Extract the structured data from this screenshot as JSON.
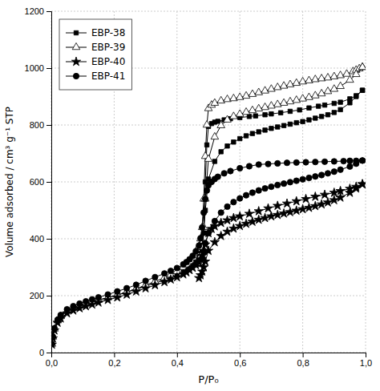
{
  "chart_data": {
    "type": "line",
    "xlabel": "P/P₀",
    "ylabel": "Volume adsorbed / cm³ g⁻¹ STP",
    "xlim": [
      0,
      1.0
    ],
    "ylim": [
      0,
      1200
    ],
    "xticks": [
      {
        "value": 0.0,
        "label": "0,0"
      },
      {
        "value": 0.2,
        "label": "0,2"
      },
      {
        "value": 0.4,
        "label": "0,4"
      },
      {
        "value": 0.6,
        "label": "0,6"
      },
      {
        "value": 0.8,
        "label": "0,8"
      },
      {
        "value": 1.0,
        "label": "1,0"
      }
    ],
    "yticks": [
      0,
      200,
      400,
      600,
      800,
      1000,
      1200
    ],
    "grid": true,
    "legend": "upper left",
    "color": "black",
    "series": [
      {
        "name": "EBP-38",
        "marker": "square",
        "x": [
          0.002,
          0.005,
          0.01,
          0.02,
          0.03,
          0.05,
          0.07,
          0.09,
          0.11,
          0.13,
          0.15,
          0.18,
          0.21,
          0.24,
          0.27,
          0.3,
          0.33,
          0.36,
          0.38,
          0.4,
          0.42,
          0.43,
          0.44,
          0.45,
          0.46,
          0.47,
          0.475,
          0.48,
          0.485,
          0.49,
          0.495,
          0.5,
          0.51,
          0.52,
          0.53,
          0.55,
          0.57,
          0.6,
          0.63,
          0.65,
          0.68,
          0.7,
          0.73,
          0.76,
          0.79,
          0.82,
          0.85,
          0.87,
          0.9,
          0.92,
          0.95,
          0.97,
          0.99
        ],
        "values": [
          30,
          55,
          85,
          115,
          130,
          148,
          158,
          166,
          173,
          179,
          185,
          193,
          202,
          212,
          222,
          233,
          244,
          255,
          263,
          272,
          283,
          290,
          298,
          308,
          320,
          335,
          348,
          365,
          420,
          600,
          730,
          795,
          805,
          810,
          813,
          818,
          822,
          826,
          830,
          832,
          836,
          839,
          843,
          848,
          853,
          860,
          866,
          870,
          876,
          880,
          892,
          903,
          922
        ]
      },
      {
        "marker": "square",
        "x": [
          0.99,
          0.97,
          0.95,
          0.92,
          0.9,
          0.88,
          0.86,
          0.84,
          0.82,
          0.8,
          0.78,
          0.76,
          0.74,
          0.72,
          0.7,
          0.68,
          0.66,
          0.64,
          0.62,
          0.6,
          0.58,
          0.56,
          0.54,
          0.52,
          0.5,
          0.49,
          0.485,
          0.48,
          0.475,
          0.47
        ],
        "values": [
          922,
          900,
          878,
          854,
          844,
          836,
          830,
          824,
          818,
          812,
          808,
          803,
          798,
          793,
          788,
          782,
          776,
          770,
          762,
          752,
          740,
          726,
          706,
          672,
          610,
          500,
          420,
          360,
          330,
          310
        ]
      },
      {
        "name": "EBP-39",
        "marker": "triangle-open",
        "x": [
          0.002,
          0.005,
          0.01,
          0.02,
          0.03,
          0.05,
          0.07,
          0.09,
          0.11,
          0.13,
          0.15,
          0.18,
          0.21,
          0.24,
          0.27,
          0.3,
          0.33,
          0.36,
          0.38,
          0.4,
          0.42,
          0.43,
          0.44,
          0.45,
          0.46,
          0.47,
          0.475,
          0.48,
          0.485,
          0.49,
          0.495,
          0.5,
          0.51,
          0.52,
          0.54,
          0.56,
          0.58,
          0.6,
          0.62,
          0.64,
          0.66,
          0.68,
          0.7,
          0.72,
          0.74,
          0.76,
          0.78,
          0.8,
          0.82,
          0.84,
          0.86,
          0.88,
          0.9,
          0.92,
          0.94,
          0.96,
          0.97,
          0.98,
          0.99
        ],
        "values": [
          30,
          55,
          83,
          112,
          127,
          146,
          156,
          164,
          171,
          178,
          184,
          193,
          202,
          213,
          224,
          237,
          250,
          263,
          273,
          285,
          300,
          309,
          320,
          334,
          352,
          374,
          400,
          440,
          540,
          690,
          800,
          858,
          870,
          877,
          885,
          890,
          893,
          897,
          902,
          908,
          914,
          920,
          926,
          932,
          937,
          942,
          947,
          952,
          956,
          960,
          963,
          966,
          970,
          974,
          979,
          988,
          993,
          998,
          1003
        ]
      },
      {
        "marker": "triangle-open",
        "x": [
          0.99,
          0.97,
          0.95,
          0.92,
          0.9,
          0.88,
          0.86,
          0.84,
          0.82,
          0.8,
          0.78,
          0.76,
          0.74,
          0.72,
          0.7,
          0.68,
          0.66,
          0.64,
          0.62,
          0.6,
          0.58,
          0.56,
          0.54,
          0.52,
          0.5,
          0.49,
          0.485,
          0.48,
          0.475,
          0.47
        ],
        "values": [
          1003,
          978,
          958,
          936,
          926,
          918,
          910,
          903,
          897,
          892,
          887,
          882,
          877,
          872,
          867,
          862,
          857,
          851,
          845,
          838,
          830,
          818,
          798,
          758,
          680,
          540,
          440,
          370,
          338,
          315
        ]
      },
      {
        "name": "EBP-40",
        "marker": "star",
        "x": [
          0.002,
          0.005,
          0.01,
          0.02,
          0.03,
          0.05,
          0.07,
          0.09,
          0.11,
          0.13,
          0.15,
          0.18,
          0.21,
          0.24,
          0.27,
          0.3,
          0.33,
          0.36,
          0.38,
          0.4,
          0.42,
          0.43,
          0.44,
          0.45,
          0.46,
          0.47,
          0.475,
          0.48,
          0.485,
          0.49,
          0.5,
          0.51,
          0.52,
          0.54,
          0.56,
          0.58,
          0.6,
          0.63,
          0.66,
          0.69,
          0.72,
          0.75,
          0.78,
          0.81,
          0.84,
          0.87,
          0.9,
          0.92,
          0.95,
          0.97,
          0.99
        ],
        "values": [
          28,
          50,
          78,
          105,
          120,
          138,
          148,
          156,
          163,
          169,
          176,
          185,
          194,
          204,
          215,
          226,
          237,
          248,
          257,
          265,
          275,
          282,
          290,
          298,
          308,
          318,
          328,
          340,
          358,
          380,
          420,
          435,
          444,
          456,
          465,
          473,
          479,
          488,
          497,
          507,
          516,
          524,
          532,
          540,
          548,
          555,
          562,
          568,
          576,
          583,
          592
        ]
      },
      {
        "marker": "star",
        "x": [
          0.99,
          0.97,
          0.95,
          0.92,
          0.9,
          0.88,
          0.86,
          0.84,
          0.82,
          0.8,
          0.78,
          0.76,
          0.74,
          0.72,
          0.7,
          0.68,
          0.66,
          0.64,
          0.62,
          0.6,
          0.58,
          0.56,
          0.54,
          0.52,
          0.5,
          0.49,
          0.485,
          0.48,
          0.475,
          0.47
        ],
        "values": [
          592,
          577,
          562,
          545,
          536,
          528,
          521,
          515,
          509,
          504,
          499,
          494,
          489,
          484,
          479,
          473,
          467,
          460,
          453,
          445,
          436,
          425,
          410,
          388,
          358,
          320,
          300,
          285,
          272,
          262
        ]
      },
      {
        "name": "EBP-41",
        "marker": "circle",
        "x": [
          0.002,
          0.005,
          0.01,
          0.02,
          0.03,
          0.05,
          0.07,
          0.09,
          0.11,
          0.13,
          0.15,
          0.18,
          0.21,
          0.24,
          0.27,
          0.3,
          0.33,
          0.36,
          0.38,
          0.4,
          0.42,
          0.43,
          0.44,
          0.45,
          0.46,
          0.47,
          0.475,
          0.48,
          0.485,
          0.49,
          0.495,
          0.5,
          0.51,
          0.52,
          0.53,
          0.55,
          0.57,
          0.6,
          0.63,
          0.66,
          0.69,
          0.72,
          0.75,
          0.78,
          0.81,
          0.84,
          0.87,
          0.9,
          0.93,
          0.95,
          0.97,
          0.99
        ],
        "values": [
          30,
          55,
          85,
          115,
          132,
          152,
          163,
          172,
          180,
          187,
          194,
          204,
          215,
          226,
          238,
          252,
          265,
          278,
          287,
          297,
          310,
          318,
          328,
          340,
          356,
          376,
          402,
          440,
          492,
          540,
          570,
          588,
          600,
          610,
          618,
          630,
          638,
          648,
          655,
          661,
          663,
          665,
          667,
          668,
          669,
          670,
          671,
          672,
          673,
          674,
          674,
          675
        ]
      },
      {
        "marker": "circle",
        "x": [
          0.99,
          0.97,
          0.95,
          0.92,
          0.9,
          0.88,
          0.86,
          0.84,
          0.82,
          0.8,
          0.78,
          0.76,
          0.74,
          0.72,
          0.7,
          0.68,
          0.66,
          0.64,
          0.62,
          0.6,
          0.58,
          0.56,
          0.54,
          0.52,
          0.5,
          0.49,
          0.485,
          0.48
        ],
        "values": [
          675,
          664,
          654,
          643,
          636,
          630,
          624,
          619,
          614,
          609,
          604,
          599,
          594,
          589,
          583,
          577,
          570,
          562,
          553,
          542,
          529,
          513,
          492,
          462,
          420,
          384,
          355,
          332
        ]
      }
    ]
  }
}
